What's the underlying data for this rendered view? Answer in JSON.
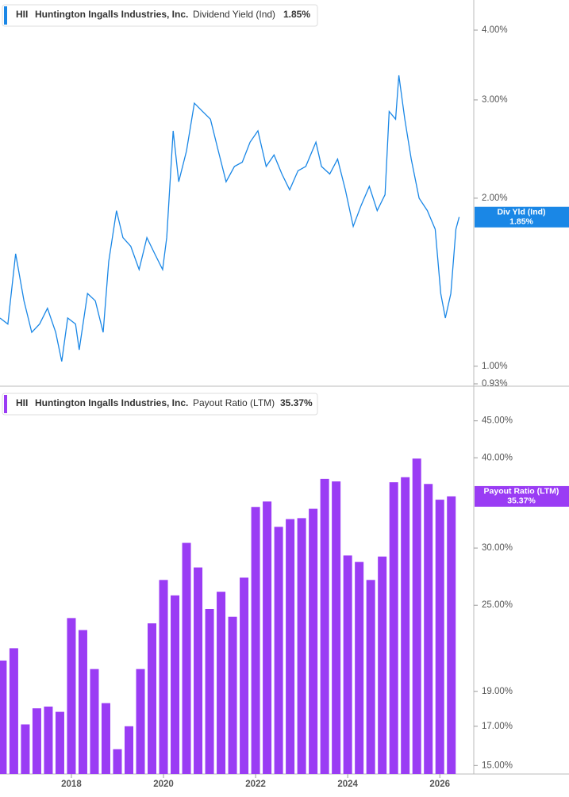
{
  "chart_data": [
    {
      "type": "line",
      "ticker": "HII",
      "company": "Huntington Ingalls Industries, Inc.",
      "tag": "Div Yld (Ind)",
      "last_label": "1.85%",
      "log_scale": true,
      "xlim": [
        2016.45,
        2026.72
      ],
      "ylim": [
        0.93,
        4.5
      ],
      "yticks": [
        {
          "value": 4,
          "label": "4.00%"
        },
        {
          "value": 3,
          "label": "3.00%"
        },
        {
          "value": 2,
          "label": "2.00%"
        },
        {
          "value": 1,
          "label": "1.00%"
        },
        {
          "value": 0.93,
          "label": "0.93%"
        }
      ],
      "x": [
        2016.45,
        2016.62,
        2016.79,
        2016.97,
        2017.14,
        2017.31,
        2017.48,
        2017.66,
        2017.79,
        2017.92,
        2018.09,
        2018.17,
        2018.35,
        2018.52,
        2018.69,
        2018.81,
        2018.98,
        2019.12,
        2019.29,
        2019.47,
        2019.64,
        2019.81,
        2019.98,
        2020.07,
        2020.21,
        2020.33,
        2020.5,
        2020.67,
        2020.85,
        2021.02,
        2021.19,
        2021.36,
        2021.54,
        2021.71,
        2021.88,
        2022.05,
        2022.23,
        2022.4,
        2022.57,
        2022.74,
        2022.92,
        2023.09,
        2023.31,
        2023.43,
        2023.61,
        2023.78,
        2023.95,
        2024.12,
        2024.29,
        2024.47,
        2024.64,
        2024.81,
        2024.9,
        2025.04,
        2025.11,
        2025.24,
        2025.38,
        2025.55,
        2025.73,
        2025.9,
        2026.02,
        2026.12,
        2026.24,
        2026.35,
        2026.42
      ],
      "series": [
        {
          "name": "Dividend Yield (Ind)",
          "color": "#1a87e6",
          "values": [
            1.22,
            1.19,
            1.59,
            1.31,
            1.15,
            1.19,
            1.27,
            1.15,
            1.02,
            1.22,
            1.19,
            1.07,
            1.35,
            1.31,
            1.15,
            1.54,
            1.9,
            1.7,
            1.64,
            1.49,
            1.7,
            1.59,
            1.49,
            1.7,
            2.64,
            2.14,
            2.43,
            2.96,
            2.86,
            2.77,
            2.43,
            2.14,
            2.28,
            2.32,
            2.52,
            2.64,
            2.28,
            2.39,
            2.21,
            2.07,
            2.24,
            2.28,
            2.52,
            2.28,
            2.21,
            2.35,
            2.07,
            1.78,
            1.94,
            2.1,
            1.9,
            2.03,
            2.86,
            2.77,
            3.32,
            2.77,
            2.35,
            2.0,
            1.9,
            1.76,
            1.35,
            1.22,
            1.35,
            1.76,
            1.85
          ]
        }
      ]
    },
    {
      "type": "bar",
      "ticker": "HII",
      "company": "Huntington Ingalls Industries, Inc.",
      "tag": "Payout Ratio (LTM)",
      "last_label": "35.37%",
      "log_scale": true,
      "xlim": [
        2016.45,
        2026.72
      ],
      "ylim": [
        14.6,
        50
      ],
      "xticks": [
        2018,
        2020,
        2022,
        2024,
        2026
      ],
      "yticks": [
        {
          "value": 45,
          "label": "45.00%"
        },
        {
          "value": 40,
          "label": "40.00%"
        },
        {
          "value": 30,
          "label": "30.00%"
        },
        {
          "value": 25,
          "label": "25.00%"
        },
        {
          "value": 19,
          "label": "19.00%"
        },
        {
          "value": 17,
          "label": "17.00%"
        },
        {
          "value": 15,
          "label": "15.00%"
        }
      ],
      "x": [
        2016.5,
        2016.75,
        2017,
        2017.25,
        2017.5,
        2017.75,
        2018,
        2018.25,
        2018.5,
        2018.75,
        2019,
        2019.25,
        2019.5,
        2019.75,
        2020,
        2020.25,
        2020.5,
        2020.75,
        2021,
        2021.25,
        2021.5,
        2021.75,
        2022,
        2022.25,
        2022.5,
        2022.75,
        2023,
        2023.25,
        2023.5,
        2023.75,
        2024,
        2024.25,
        2024.5,
        2024.75,
        2025,
        2025.25,
        2025.5,
        2025.75,
        2026,
        2026.25
      ],
      "series": [
        {
          "name": "Payout Ratio (LTM)",
          "color": "#9a3cf4",
          "values": [
            20.96,
            21.8,
            17.1,
            18.0,
            18.1,
            17.8,
            24.0,
            23.1,
            20.4,
            18.3,
            15.8,
            17.0,
            20.4,
            23.6,
            27.1,
            25.8,
            30.5,
            28.2,
            24.7,
            26.1,
            24.1,
            27.3,
            34.2,
            34.8,
            32.1,
            32.9,
            33.0,
            34.0,
            37.4,
            37.1,
            29.3,
            28.7,
            27.1,
            29.2,
            37.0,
            37.6,
            39.9,
            36.8,
            35.0,
            35.37
          ]
        }
      ]
    }
  ]
}
